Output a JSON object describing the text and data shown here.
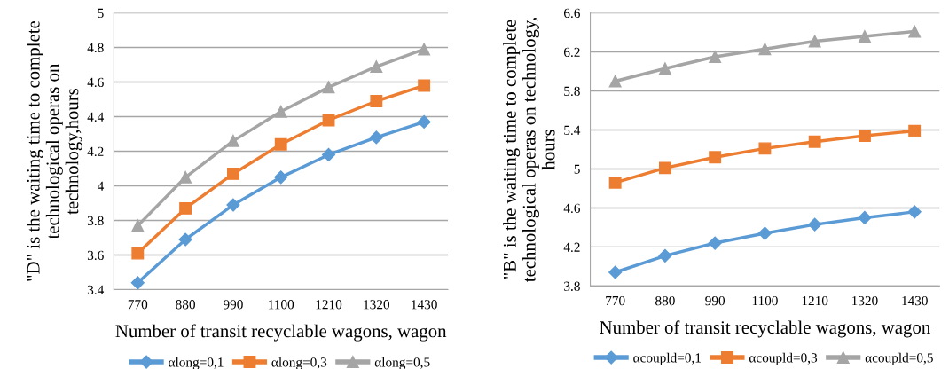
{
  "chart_data": [
    {
      "type": "line",
      "xlabel": "Number of transit recyclable wagons, wagon",
      "ylabel": "\"D\" is the waiting time to complete\ntechnological operas on\ntechnology,hours",
      "categories": [
        "770",
        "880",
        "990",
        "1100",
        "1210",
        "1320",
        "1430"
      ],
      "ylim": [
        3.4,
        5
      ],
      "yticks": [
        3.4,
        3.6,
        3.8,
        4,
        4.2,
        4.4,
        4.6,
        4.8,
        5
      ],
      "grid": "y",
      "legend": "bottom",
      "line_style": "solid",
      "series": [
        {
          "name": "αlong=0,1",
          "color": "#5b9bd5",
          "marker": "diamond",
          "values": [
            3.44,
            3.69,
            3.89,
            4.05,
            4.18,
            4.28,
            4.37
          ]
        },
        {
          "name": "αlong=0,3",
          "color": "#ed7d31",
          "marker": "square",
          "values": [
            3.61,
            3.87,
            4.07,
            4.24,
            4.38,
            4.49,
            4.58
          ]
        },
        {
          "name": "αlong=0,5",
          "color": "#a5a5a5",
          "marker": "triangle",
          "values": [
            3.77,
            4.05,
            4.26,
            4.43,
            4.57,
            4.69,
            4.79
          ]
        }
      ]
    },
    {
      "type": "line",
      "xlabel": "Number of transit recyclable wagons, wagon",
      "ylabel": "\"B\" is the waiting time to complete\ntechnological operas on technology,\nhours",
      "categories": [
        "770",
        "880",
        "990",
        "1100",
        "1210",
        "1320",
        "1430"
      ],
      "ylim": [
        3.8,
        6.6
      ],
      "yticks": [
        3.8,
        4.2,
        4.6,
        5,
        5.4,
        5.8,
        6.2,
        6.6
      ],
      "grid": "y",
      "legend": "bottom",
      "line_style": "solid",
      "series": [
        {
          "name": "αcoupld=0,1",
          "color": "#5b9bd5",
          "marker": "diamond",
          "values": [
            3.94,
            4.11,
            4.24,
            4.34,
            4.43,
            4.5,
            4.56
          ]
        },
        {
          "name": "αcoupld=0,3",
          "color": "#ed7d31",
          "marker": "square",
          "values": [
            4.86,
            5.01,
            5.12,
            5.21,
            5.28,
            5.34,
            5.39
          ]
        },
        {
          "name": "αcoupld=0,5",
          "color": "#a5a5a5",
          "marker": "triangle",
          "values": [
            5.9,
            6.03,
            6.15,
            6.23,
            6.31,
            6.36,
            6.41
          ]
        }
      ]
    }
  ]
}
